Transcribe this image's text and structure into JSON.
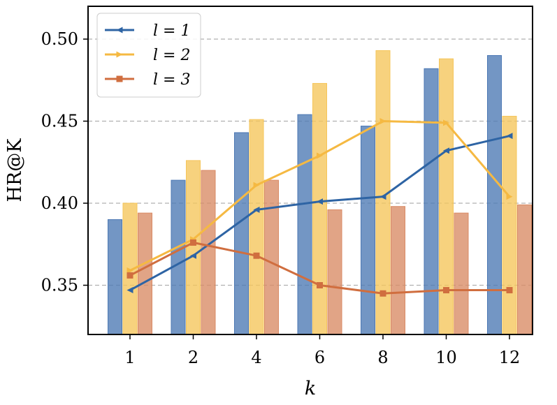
{
  "chart_data": {
    "type": "bar",
    "xlabel": "k",
    "ylabel": "HR@K",
    "categories": [
      "1",
      "2",
      "4",
      "6",
      "8",
      "10",
      "12"
    ],
    "ylim": [
      0.32,
      0.52
    ],
    "yticks": [
      "0.35",
      "0.40",
      "0.45",
      "0.50"
    ],
    "grid": "horizontal dashed",
    "legend_position": "top-left",
    "bar_series": [
      {
        "color": "#4c78b4",
        "values": [
          0.39,
          0.414,
          0.443,
          0.454,
          0.447,
          0.482,
          0.49
        ]
      },
      {
        "color": "#f5c55a",
        "values": [
          0.4,
          0.426,
          0.451,
          0.473,
          0.493,
          0.488,
          0.453
        ]
      },
      {
        "color": "#d98a64",
        "values": [
          0.394,
          0.42,
          0.414,
          0.396,
          0.398,
          0.394,
          0.399
        ]
      }
    ],
    "line_series": [
      {
        "name": "l = 1",
        "color": "#2e64a4",
        "marker": "triangle-left",
        "values": [
          0.347,
          0.368,
          0.396,
          0.401,
          0.404,
          0.432,
          0.441
        ]
      },
      {
        "name": "l = 2",
        "color": "#f5b942",
        "marker": "triangle-right",
        "values": [
          0.359,
          0.378,
          0.411,
          0.429,
          0.45,
          0.449,
          0.404
        ]
      },
      {
        "name": "l = 3",
        "color": "#d06e3f",
        "marker": "square",
        "values": [
          0.356,
          0.376,
          0.368,
          0.35,
          0.345,
          0.347,
          0.347
        ]
      }
    ]
  }
}
